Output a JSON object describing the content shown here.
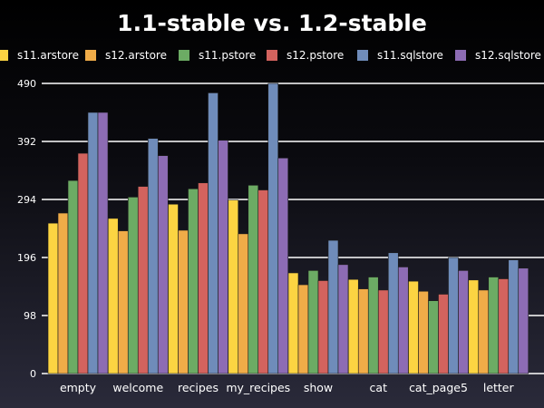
{
  "chart_data": {
    "type": "bar",
    "title": "1.1-stable vs. 1.2-stable",
    "xlabel": "",
    "ylabel": "",
    "ylim": [
      0,
      490
    ],
    "yticks": [
      "0",
      "98",
      "196",
      "294",
      "392",
      "490"
    ],
    "grid": "horizontal",
    "legend_position": "top",
    "categories": [
      "empty",
      "welcome",
      "recipes",
      "my_recipes",
      "show",
      "cat",
      "cat_page5",
      "letter"
    ],
    "series": [
      {
        "name": "s11.arstore",
        "color": "#fcd442",
        "values": [
          254,
          262,
          286,
          293,
          170,
          159,
          156,
          158
        ]
      },
      {
        "name": "s12.arstore",
        "color": "#f0ac48",
        "values": [
          271,
          241,
          242,
          236,
          150,
          143,
          139,
          141
        ]
      },
      {
        "name": "s11.pstore",
        "color": "#6cab64",
        "values": [
          326,
          298,
          312,
          318,
          174,
          163,
          123,
          163
        ]
      },
      {
        "name": "s12.pstore",
        "color": "#d3635e",
        "values": [
          372,
          316,
          322,
          310,
          157,
          141,
          134,
          160
        ]
      },
      {
        "name": "s11.sqlstore",
        "color": "#6f8cba",
        "values": [
          441,
          397,
          474,
          490,
          225,
          204,
          196,
          192
        ]
      },
      {
        "name": "s12.sqlstore",
        "color": "#8d6cb4",
        "values": [
          441,
          368,
          394,
          364,
          184,
          180,
          174,
          178
        ]
      }
    ]
  }
}
